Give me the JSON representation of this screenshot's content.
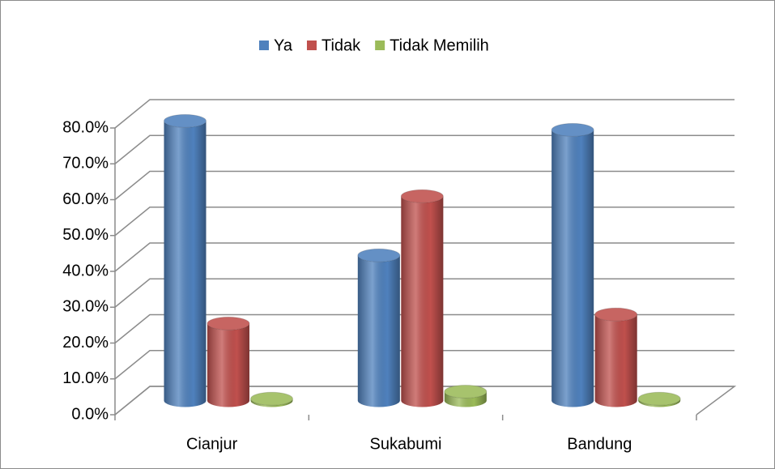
{
  "chart_data": {
    "type": "bar3d",
    "categories": [
      "Cianjur",
      "Sukabumi",
      "Bandung"
    ],
    "series": [
      {
        "name": "Ya",
        "color": "#4f81bd",
        "values": [
          78,
          40.5,
          75.5
        ]
      },
      {
        "name": "Tidak",
        "color": "#c0504d",
        "values": [
          21.5,
          57,
          24
        ]
      },
      {
        "name": "Tidak Memilih",
        "color": "#9bbb59",
        "values": [
          0.5,
          2.5,
          0.5
        ]
      }
    ],
    "ylim": [
      0,
      80
    ],
    "yticks": [
      {
        "value": 0,
        "label": "0.0%"
      },
      {
        "value": 10,
        "label": "10.0%"
      },
      {
        "value": 20,
        "label": "20.0%"
      },
      {
        "value": 30,
        "label": "30.0%"
      },
      {
        "value": 40,
        "label": "40.0%"
      },
      {
        "value": 50,
        "label": "50.0%"
      },
      {
        "value": 60,
        "label": "60.0%"
      },
      {
        "value": 70,
        "label": "70.0%"
      },
      {
        "value": 80,
        "label": "80.0%"
      }
    ],
    "grid": true,
    "legend": "top"
  }
}
